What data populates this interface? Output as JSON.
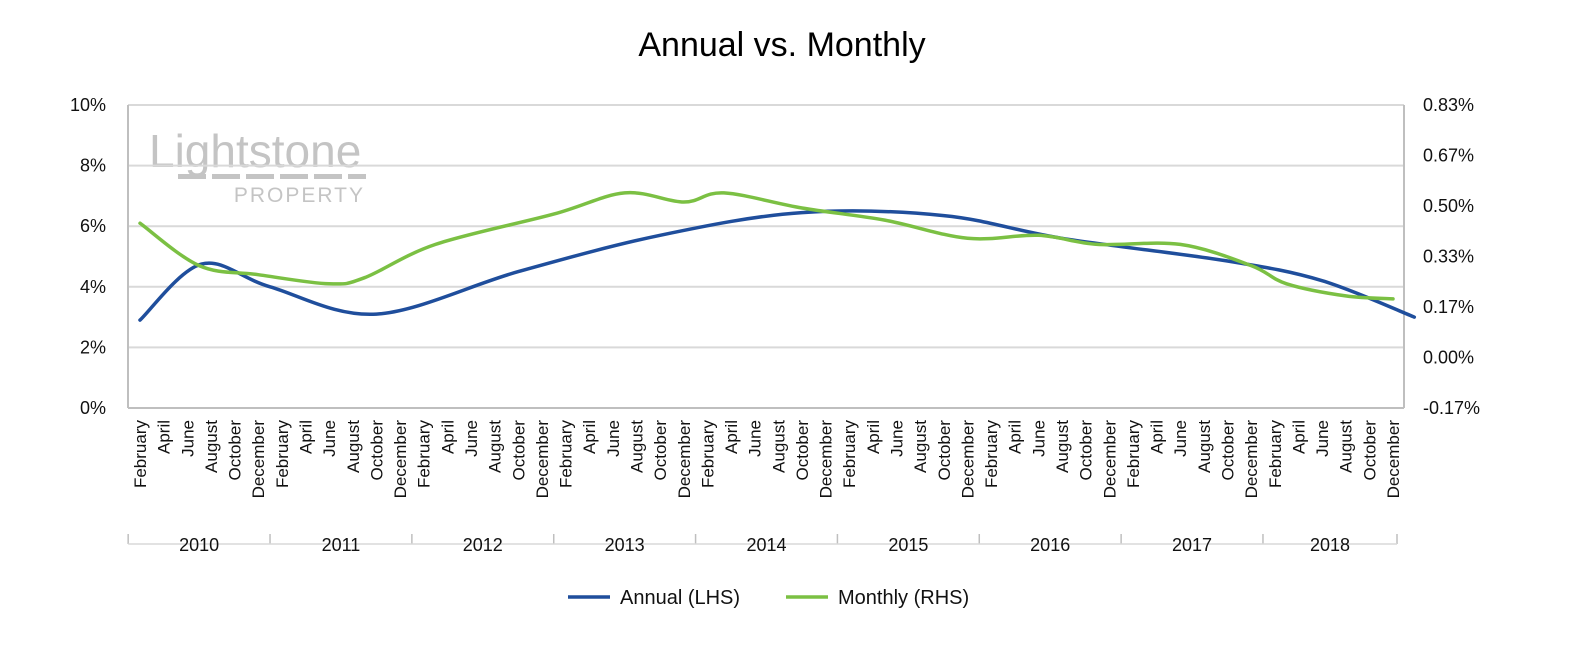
{
  "chart_data": {
    "type": "line",
    "title": "Annual vs. Monthly",
    "watermark": {
      "main": "Lightstone",
      "sub": "PROPERTY"
    },
    "colors": {
      "annual": "#1f4e9c",
      "monthly": "#7bc043",
      "grid": "#d9d9d9",
      "axis": "#bfbfbf"
    },
    "grid": true,
    "legend_position": "bottom",
    "y_left": {
      "label": "",
      "ylim": [
        0,
        10
      ],
      "ticks": [
        0,
        2,
        4,
        6,
        8,
        10
      ],
      "tick_labels": [
        "0%",
        "2%",
        "4%",
        "6%",
        "8%",
        "10%"
      ]
    },
    "y_right": {
      "label": "",
      "ylim": [
        -0.17,
        0.83
      ],
      "tick_labels": [
        "-0.17%",
        "0.00%",
        "0.17%",
        "0.33%",
        "0.50%",
        "0.67%",
        "0.83%"
      ]
    },
    "x_months": [
      "February",
      "April",
      "June",
      "August",
      "October",
      "December",
      "February",
      "April",
      "June",
      "August",
      "October",
      "December",
      "February",
      "April",
      "June",
      "August",
      "October",
      "December",
      "February",
      "April",
      "June",
      "August",
      "October",
      "December",
      "February",
      "April",
      "June",
      "August",
      "October",
      "December",
      "February",
      "April",
      "June",
      "August",
      "October",
      "December",
      "February",
      "April",
      "June",
      "August",
      "October",
      "December",
      "February",
      "April",
      "June",
      "August",
      "October",
      "December",
      "February",
      "April",
      "June",
      "August",
      "October",
      "December"
    ],
    "x_years": [
      "2010",
      "2011",
      "2012",
      "2013",
      "2014",
      "2015",
      "2016",
      "2017",
      "2018"
    ],
    "series": [
      {
        "name": "Annual (LHS)",
        "axis": "left",
        "x_index": [
          0,
          2.6,
          5.5,
          10,
          16,
          22,
          28,
          34,
          39,
          46,
          50,
          53.9
        ],
        "values": [
          2.9,
          4.75,
          4.0,
          3.1,
          4.5,
          5.7,
          6.45,
          6.35,
          5.6,
          4.85,
          4.2,
          3.0
        ]
      },
      {
        "name": "Monthly (RHS)",
        "axis": "right",
        "x_index": [
          0,
          2.5,
          5,
          8,
          9.5,
          12.5,
          17.5,
          20.5,
          23,
          24.7,
          28,
          31.5,
          35,
          38,
          40.5,
          44,
          47,
          48.5,
          51,
          53
        ],
        "values": [
          0.44,
          0.3,
          0.27,
          0.24,
          0.26,
          0.37,
          0.47,
          0.54,
          0.51,
          0.54,
          0.49,
          0.45,
          0.39,
          0.4,
          0.37,
          0.37,
          0.3,
          0.24,
          0.2,
          0.19
        ]
      }
    ]
  }
}
